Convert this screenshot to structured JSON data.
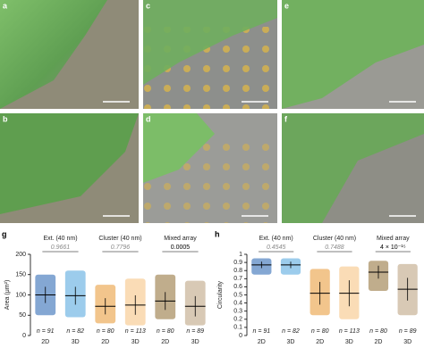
{
  "panels": [
    {
      "label": "a"
    },
    {
      "label": "b"
    },
    {
      "label": "c"
    },
    {
      "label": "d"
    },
    {
      "label": "e"
    },
    {
      "label": "f"
    }
  ],
  "chart_data": [
    {
      "type": "strip",
      "panel_label": "g",
      "ylabel": "Area (μm²)",
      "ylim": [
        0,
        200
      ],
      "yticks": [
        0,
        50,
        100,
        150,
        200
      ],
      "groups": [
        {
          "name": "Ext. (40 nm)",
          "p_value": "0.9661",
          "p_significant": false,
          "categories": [
            "2D",
            "3D"
          ],
          "n_labels": [
            "n = 91",
            "n = 82"
          ],
          "colors": [
            "#1f5fae",
            "#4aa3dd"
          ],
          "means": [
            100,
            98
          ],
          "sd": [
            20,
            22
          ],
          "min": [
            50,
            45
          ],
          "max": [
            150,
            160
          ]
        },
        {
          "name": "Cluster (40 nm)",
          "p_value": "0.7796",
          "p_significant": false,
          "categories": [
            "2D",
            "3D"
          ],
          "n_labels": [
            "n = 80",
            "n = 113"
          ],
          "colors": [
            "#e8962e",
            "#f6c07a"
          ],
          "means": [
            72,
            75
          ],
          "sd": [
            20,
            24
          ],
          "min": [
            30,
            25
          ],
          "max": [
            125,
            140
          ]
        },
        {
          "name": "Mixed array",
          "p_value": "0.0005",
          "p_significant": true,
          "categories": [
            "2D",
            "3D"
          ],
          "n_labels": [
            "n = 80",
            "n = 89"
          ],
          "colors": [
            "#8c6a2e",
            "#b89c78"
          ],
          "means": [
            85,
            72
          ],
          "sd": [
            22,
            25
          ],
          "min": [
            40,
            25
          ],
          "max": [
            150,
            135
          ]
        }
      ]
    },
    {
      "type": "strip",
      "panel_label": "h",
      "ylabel": "Circularity",
      "ylim": [
        0,
        1
      ],
      "yticks": [
        0,
        0.1,
        0.2,
        0.3,
        0.4,
        0.5,
        0.6,
        0.7,
        0.8,
        0.9,
        1
      ],
      "groups": [
        {
          "name": "Ext. (40 nm)",
          "p_value": "0.4545",
          "p_significant": false,
          "categories": [
            "2D",
            "3D"
          ],
          "n_labels": [
            "n = 91",
            "n = 82"
          ],
          "colors": [
            "#1f5fae",
            "#4aa3dd"
          ],
          "means": [
            0.87,
            0.87
          ],
          "sd": [
            0.04,
            0.04
          ],
          "min": [
            0.75,
            0.75
          ],
          "max": [
            0.95,
            0.95
          ]
        },
        {
          "name": "Cluster (40 nm)",
          "p_value": "0.7488",
          "p_significant": false,
          "categories": [
            "2D",
            "3D"
          ],
          "n_labels": [
            "n = 80",
            "n = 113"
          ],
          "colors": [
            "#e8962e",
            "#f6c07a"
          ],
          "means": [
            0.52,
            0.52
          ],
          "sd": [
            0.14,
            0.16
          ],
          "min": [
            0.25,
            0.2
          ],
          "max": [
            0.82,
            0.85
          ]
        },
        {
          "name": "Mixed array",
          "p_value": "4 × 10⁻¹⁵",
          "p_significant": true,
          "categories": [
            "2D",
            "3D"
          ],
          "n_labels": [
            "n = 80",
            "n = 89"
          ],
          "colors": [
            "#8c6a2e",
            "#b89c78"
          ],
          "means": [
            0.78,
            0.57
          ],
          "sd": [
            0.08,
            0.14
          ],
          "min": [
            0.55,
            0.25
          ],
          "max": [
            0.92,
            0.88
          ]
        }
      ]
    }
  ]
}
